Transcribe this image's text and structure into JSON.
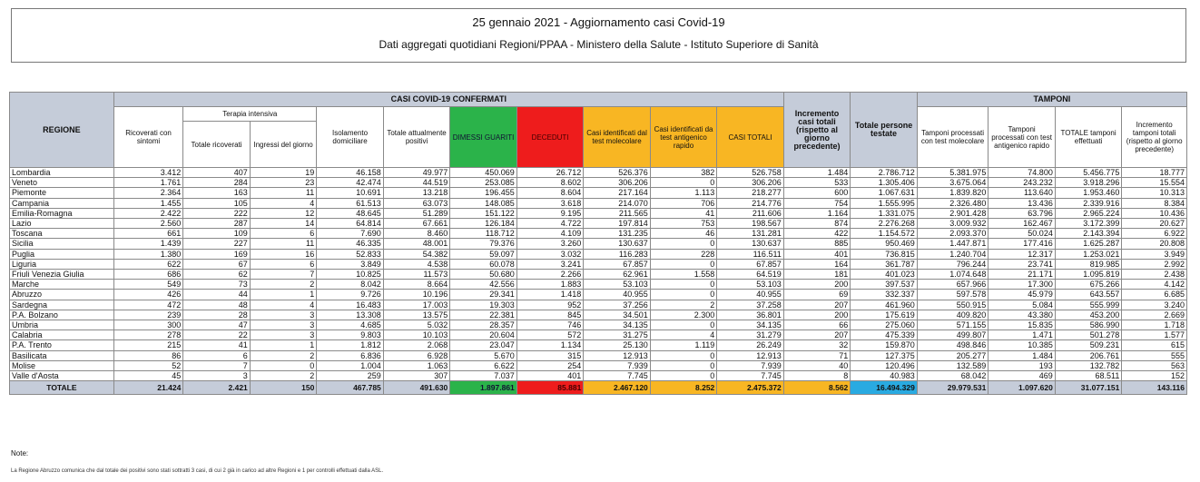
{
  "header": {
    "title": "25 gennaio 2021 - Aggiornamento casi Covid-19",
    "subtitle": "Dati aggregati quotidiani Regioni/PPAA - Ministero della Salute - Istituto Superiore di Sanità"
  },
  "table": {
    "group_casi": "CASI COVID-19 CONFERMATI",
    "group_tamponi": "TAMPONI",
    "group_ti": "Terapia intensiva",
    "columns": [
      "REGIONE",
      "Ricoverati con sintomi",
      "Totale ricoverati",
      "Ingressi del giorno",
      "Isolamento domiciliare",
      "Totale attualmente positivi",
      "DIMESSI GUARITI",
      "DECEDUTI",
      "Casi identificati dal test molecolare",
      "Casi identificati da test antigenico rapido",
      "CASI TOTALI",
      "Incremento casi totali (rispetto al giorno precedente)",
      "Totale persone testate",
      "Tamponi processati con test molecolare",
      "Tamponi processati con test antigenico rapido",
      "TOTALE tamponi effettuati",
      "Incremento tamponi totali (rispetto al giorno precedente)"
    ],
    "rows": [
      [
        "Lombardia",
        "3.412",
        "407",
        "19",
        "46.158",
        "49.977",
        "450.069",
        "26.712",
        "526.376",
        "382",
        "526.758",
        "1.484",
        "2.786.712",
        "5.381.975",
        "74.800",
        "5.456.775",
        "18.777"
      ],
      [
        "Veneto",
        "1.761",
        "284",
        "23",
        "42.474",
        "44.519",
        "253.085",
        "8.602",
        "306.206",
        "0",
        "306.206",
        "533",
        "1.305.406",
        "3.675.064",
        "243.232",
        "3.918.296",
        "15.554"
      ],
      [
        "Piemonte",
        "2.364",
        "163",
        "11",
        "10.691",
        "13.218",
        "196.455",
        "8.604",
        "217.164",
        "1.113",
        "218.277",
        "600",
        "1.067.631",
        "1.839.820",
        "113.640",
        "1.953.460",
        "10.313"
      ],
      [
        "Campania",
        "1.455",
        "105",
        "4",
        "61.513",
        "63.073",
        "148.085",
        "3.618",
        "214.070",
        "706",
        "214.776",
        "754",
        "1.555.995",
        "2.326.480",
        "13.436",
        "2.339.916",
        "8.384"
      ],
      [
        "Emilia-Romagna",
        "2.422",
        "222",
        "12",
        "48.645",
        "51.289",
        "151.122",
        "9.195",
        "211.565",
        "41",
        "211.606",
        "1.164",
        "1.331.075",
        "2.901.428",
        "63.796",
        "2.965.224",
        "10.436"
      ],
      [
        "Lazio",
        "2.560",
        "287",
        "14",
        "64.814",
        "67.661",
        "126.184",
        "4.722",
        "197.814",
        "753",
        "198.567",
        "874",
        "2.276.268",
        "3.009.932",
        "162.467",
        "3.172.399",
        "20.627"
      ],
      [
        "Toscana",
        "661",
        "109",
        "6",
        "7.690",
        "8.460",
        "118.712",
        "4.109",
        "131.235",
        "46",
        "131.281",
        "422",
        "1.154.572",
        "2.093.370",
        "50.024",
        "2.143.394",
        "6.922"
      ],
      [
        "Sicilia",
        "1.439",
        "227",
        "11",
        "46.335",
        "48.001",
        "79.376",
        "3.260",
        "130.637",
        "0",
        "130.637",
        "885",
        "950.469",
        "1.447.871",
        "177.416",
        "1.625.287",
        "20.808"
      ],
      [
        "Puglia",
        "1.380",
        "169",
        "16",
        "52.833",
        "54.382",
        "59.097",
        "3.032",
        "116.283",
        "228",
        "116.511",
        "401",
        "736.815",
        "1.240.704",
        "12.317",
        "1.253.021",
        "3.949"
      ],
      [
        "Liguria",
        "622",
        "67",
        "6",
        "3.849",
        "4.538",
        "60.078",
        "3.241",
        "67.857",
        "0",
        "67.857",
        "164",
        "361.787",
        "796.244",
        "23.741",
        "819.985",
        "2.992"
      ],
      [
        "Friuli Venezia Giulia",
        "686",
        "62",
        "7",
        "10.825",
        "11.573",
        "50.680",
        "2.266",
        "62.961",
        "1.558",
        "64.519",
        "181",
        "401.023",
        "1.074.648",
        "21.171",
        "1.095.819",
        "2.438"
      ],
      [
        "Marche",
        "549",
        "73",
        "2",
        "8.042",
        "8.664",
        "42.556",
        "1.883",
        "53.103",
        "0",
        "53.103",
        "200",
        "397.537",
        "657.966",
        "17.300",
        "675.266",
        "4.142"
      ],
      [
        "Abruzzo",
        "426",
        "44",
        "1",
        "9.726",
        "10.196",
        "29.341",
        "1.418",
        "40.955",
        "0",
        "40.955",
        "69",
        "332.337",
        "597.578",
        "45.979",
        "643.557",
        "6.685"
      ],
      [
        "Sardegna",
        "472",
        "48",
        "4",
        "16.483",
        "17.003",
        "19.303",
        "952",
        "37.256",
        "2",
        "37.258",
        "207",
        "461.960",
        "550.915",
        "5.084",
        "555.999",
        "3.240"
      ],
      [
        "P.A. Bolzano",
        "239",
        "28",
        "3",
        "13.308",
        "13.575",
        "22.381",
        "845",
        "34.501",
        "2.300",
        "36.801",
        "200",
        "175.619",
        "409.820",
        "43.380",
        "453.200",
        "2.669"
      ],
      [
        "Umbria",
        "300",
        "47",
        "3",
        "4.685",
        "5.032",
        "28.357",
        "746",
        "34.135",
        "0",
        "34.135",
        "66",
        "275.060",
        "571.155",
        "15.835",
        "586.990",
        "1.718"
      ],
      [
        "Calabria",
        "278",
        "22",
        "3",
        "9.803",
        "10.103",
        "20.604",
        "572",
        "31.275",
        "4",
        "31.279",
        "207",
        "475.339",
        "499.807",
        "1.471",
        "501.278",
        "1.577"
      ],
      [
        "P.A. Trento",
        "215",
        "41",
        "1",
        "1.812",
        "2.068",
        "23.047",
        "1.134",
        "25.130",
        "1.119",
        "26.249",
        "32",
        "159.870",
        "498.846",
        "10.385",
        "509.231",
        "615"
      ],
      [
        "Basilicata",
        "86",
        "6",
        "2",
        "6.836",
        "6.928",
        "5.670",
        "315",
        "12.913",
        "0",
        "12.913",
        "71",
        "127.375",
        "205.277",
        "1.484",
        "206.761",
        "555"
      ],
      [
        "Molise",
        "52",
        "7",
        "0",
        "1.004",
        "1.063",
        "6.622",
        "254",
        "7.939",
        "0",
        "7.939",
        "40",
        "120.496",
        "132.589",
        "193",
        "132.782",
        "563"
      ],
      [
        "Valle d'Aosta",
        "45",
        "3",
        "2",
        "259",
        "307",
        "7.037",
        "401",
        "7.745",
        "0",
        "7.745",
        "8",
        "40.983",
        "68.042",
        "469",
        "68.511",
        "152"
      ]
    ],
    "totals": [
      "TOTALE",
      "21.424",
      "2.421",
      "150",
      "467.785",
      "491.630",
      "1.897.861",
      "85.881",
      "2.467.120",
      "8.252",
      "2.475.372",
      "8.562",
      "16.494.329",
      "29.979.531",
      "1.097.620",
      "31.077.151",
      "143.116"
    ]
  },
  "notes": {
    "label": "Note:",
    "text": "La Regione Abruzzo comunica che dal totale dei positivi sono stati sottratti 3 casi, di cui 2 già in carico ad altre Regioni e 1 per controlli effettuati dalla ASL."
  },
  "colors": {
    "green": "#2bb34a",
    "red": "#ee1c1c",
    "orange": "#f8b623",
    "blue": "#29aae1",
    "header_gray": "#c5ccd9"
  }
}
